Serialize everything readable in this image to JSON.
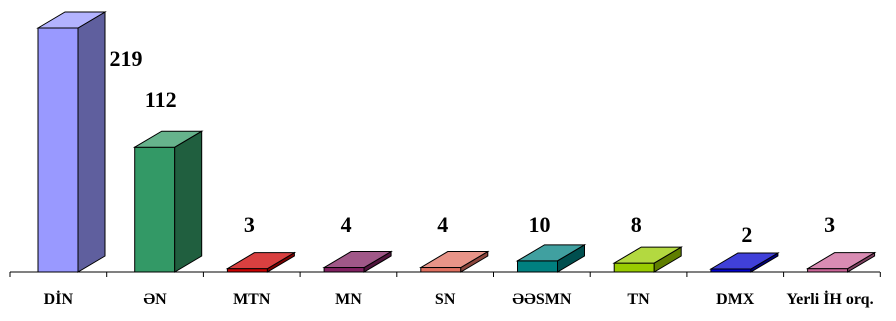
{
  "chart_data": {
    "type": "bar",
    "categories": [
      "DİN",
      "ƏN",
      "MTN",
      "MN",
      "SN",
      "ƏƏSMN",
      "TN",
      "DMX",
      "Yerli İH orq."
    ],
    "values": [
      219,
      112,
      3,
      4,
      4,
      10,
      8,
      2,
      3
    ],
    "colors": [
      "#9999ff",
      "#339966",
      "#cc0000",
      "#802060",
      "#e07060",
      "#008080",
      "#99cc00",
      "#0000cc",
      "#cc6699"
    ],
    "ylim": [
      0,
      219
    ],
    "grid": false,
    "legend": "none",
    "style": "3d-columns"
  }
}
